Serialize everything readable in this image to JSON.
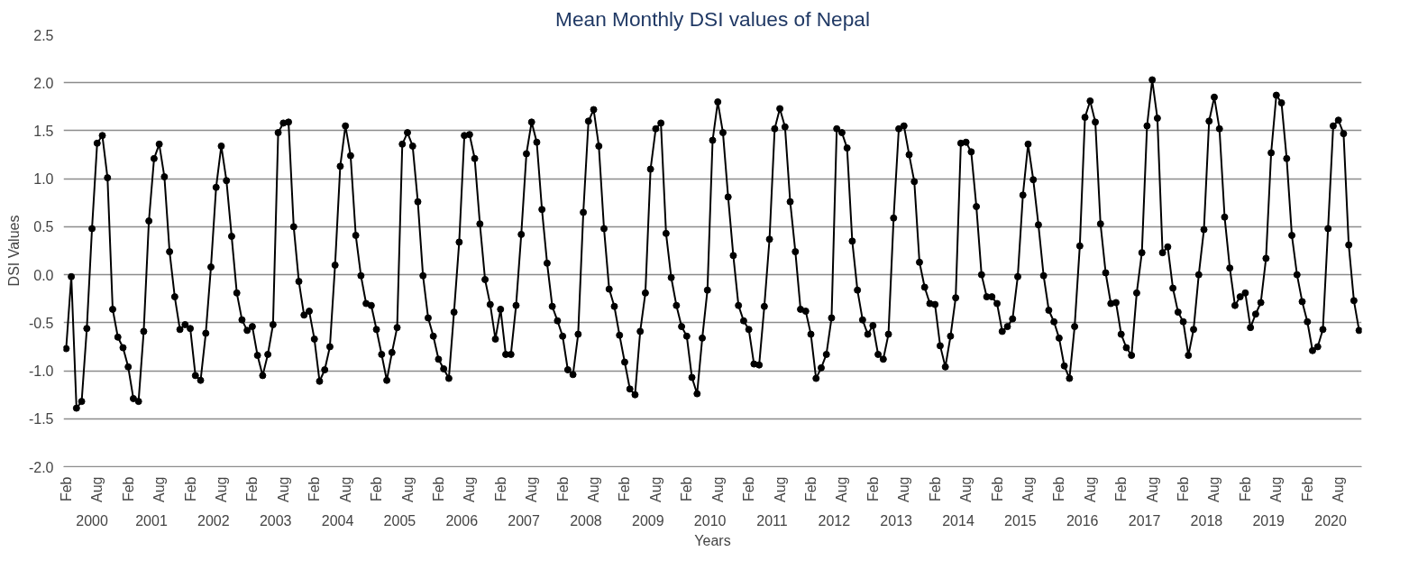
{
  "chart_data": {
    "type": "line",
    "title": "Mean Monthly DSI values of Nepal",
    "xlabel": "Years",
    "ylabel": "DSI Values",
    "categories": [
      "Feb",
      null,
      null,
      null,
      null,
      null,
      "Aug",
      null,
      null,
      null,
      null,
      null,
      "Feb",
      null,
      null,
      null,
      null,
      null,
      "Aug",
      null,
      null,
      null,
      null,
      null,
      "Feb",
      null,
      null,
      null,
      null,
      null,
      "Aug",
      null,
      null,
      null,
      null,
      null,
      "Feb",
      null,
      null,
      null,
      null,
      null,
      "Aug",
      null,
      null,
      null,
      null,
      null,
      "Feb",
      null,
      null,
      null,
      null,
      null,
      "Aug",
      null,
      null,
      null,
      null,
      null,
      "Feb",
      null,
      null,
      null,
      null,
      null,
      "Aug",
      null,
      null,
      null,
      null,
      null,
      "Feb",
      null,
      null,
      null,
      null,
      null,
      "Aug",
      null,
      null,
      null,
      null,
      null,
      "Feb",
      null,
      null,
      null,
      null,
      null,
      "Aug",
      null,
      null,
      null,
      null,
      null,
      "Feb",
      null,
      null,
      null,
      null,
      null,
      "Aug",
      null,
      null,
      null,
      null,
      null,
      "Feb",
      null,
      null,
      null,
      null,
      null,
      "Aug",
      null,
      null,
      null,
      null,
      null,
      "Feb",
      null,
      null,
      null,
      null,
      null,
      "Aug",
      null,
      null,
      null,
      null,
      null,
      "Feb",
      null,
      null,
      null,
      null,
      null,
      "Aug",
      null,
      null,
      null,
      null,
      null,
      "Feb",
      null,
      null,
      null,
      null,
      null,
      "Aug",
      null,
      null,
      null,
      null,
      null,
      "Feb",
      null,
      null,
      null,
      null,
      null,
      "Aug",
      null,
      null,
      null,
      null,
      null,
      "Feb",
      null,
      null,
      null,
      null,
      null,
      "Aug",
      null,
      null,
      null,
      null,
      null,
      "Feb",
      null,
      null,
      null,
      null,
      null,
      "Aug",
      null,
      null,
      null,
      null,
      null,
      "Feb",
      null,
      null,
      null,
      null,
      null,
      "Aug",
      null,
      null,
      null,
      null,
      null,
      "Feb",
      null,
      null,
      null,
      null,
      null,
      "Aug",
      null,
      null,
      null,
      null,
      null,
      "Feb",
      null,
      null,
      null,
      null,
      null,
      "Aug",
      null,
      null,
      null,
      null,
      null,
      "Feb",
      null,
      null,
      null,
      null,
      null,
      "Aug",
      null,
      null,
      null,
      null,
      null,
      "Feb",
      null,
      null,
      null,
      null,
      null,
      "Aug",
      null,
      null,
      null,
      null
    ],
    "series": [
      {
        "color": "#000000",
        "values": [
          -0.77,
          -0.02,
          -1.39,
          -1.32,
          -0.56,
          0.48,
          1.37,
          1.45,
          1.01,
          -0.36,
          -0.65,
          -0.76,
          -0.96,
          -1.29,
          -1.32,
          -0.59,
          0.56,
          1.21,
          1.36,
          1.02,
          0.24,
          -0.23,
          -0.57,
          -0.52,
          -0.56,
          -1.05,
          -1.1,
          -0.61,
          0.08,
          0.91,
          1.34,
          0.98,
          0.4,
          -0.19,
          -0.47,
          -0.58,
          -0.54,
          -0.84,
          -1.05,
          -0.83,
          -0.52,
          1.48,
          1.58,
          1.59,
          0.5,
          -0.07,
          -0.42,
          -0.38,
          -0.67,
          -1.11,
          -0.99,
          -0.75,
          0.1,
          1.13,
          1.55,
          1.24,
          0.41,
          -0.01,
          -0.3,
          -0.32,
          -0.57,
          -0.83,
          -1.1,
          -0.81,
          -0.55,
          1.36,
          1.48,
          1.34,
          0.76,
          -0.01,
          -0.45,
          -0.64,
          -0.88,
          -0.98,
          -1.08,
          -0.39,
          0.34,
          1.45,
          1.46,
          1.21,
          0.53,
          -0.05,
          -0.31,
          -0.67,
          -0.36,
          -0.83,
          -0.83,
          -0.32,
          0.42,
          1.26,
          1.59,
          1.38,
          0.68,
          0.12,
          -0.33,
          -0.48,
          -0.64,
          -0.99,
          -1.04,
          -0.62,
          0.65,
          1.6,
          1.72,
          1.34,
          0.48,
          -0.15,
          -0.33,
          -0.63,
          -0.91,
          -1.19,
          -1.25,
          -0.59,
          -0.19,
          1.1,
          1.52,
          1.58,
          0.43,
          -0.03,
          -0.32,
          -0.54,
          -0.64,
          -1.07,
          -1.24,
          -0.66,
          -0.16,
          1.4,
          1.8,
          1.48,
          0.81,
          0.2,
          -0.32,
          -0.48,
          -0.57,
          -0.93,
          -0.94,
          -0.33,
          0.37,
          1.52,
          1.73,
          1.54,
          0.76,
          0.24,
          -0.36,
          -0.38,
          -0.62,
          -1.08,
          -0.97,
          -0.83,
          -0.45,
          1.52,
          1.48,
          1.32,
          0.35,
          -0.16,
          -0.47,
          -0.62,
          -0.53,
          -0.83,
          -0.88,
          -0.62,
          0.59,
          1.52,
          1.55,
          1.25,
          0.97,
          0.13,
          -0.13,
          -0.3,
          -0.31,
          -0.74,
          -0.96,
          -0.64,
          -0.24,
          1.37,
          1.38,
          1.28,
          0.71,
          0.0,
          -0.23,
          -0.23,
          -0.3,
          -0.59,
          -0.54,
          -0.46,
          -0.02,
          0.83,
          1.36,
          0.99,
          0.52,
          -0.01,
          -0.37,
          -0.49,
          -0.66,
          -0.95,
          -1.08,
          -0.54,
          0.3,
          1.64,
          1.81,
          1.59,
          0.53,
          0.02,
          -0.3,
          -0.29,
          -0.62,
          -0.76,
          -0.84,
          -0.19,
          0.23,
          1.55,
          2.03,
          1.63,
          0.23,
          0.29,
          -0.14,
          -0.39,
          -0.49,
          -0.84,
          -0.57,
          0.0,
          0.47,
          1.6,
          1.85,
          1.52,
          0.6,
          0.07,
          -0.32,
          -0.23,
          -0.19,
          -0.55,
          -0.41,
          -0.29,
          0.17,
          1.27,
          1.87,
          1.79,
          1.21,
          0.41,
          0.0,
          -0.28,
          -0.49,
          -0.79,
          -0.75,
          -0.57,
          0.48,
          1.55,
          1.61,
          1.47,
          0.31,
          -0.27,
          -0.58
        ]
      }
    ],
    "annotations": [
      "2000",
      "2001",
      "2002",
      "2003",
      "2004",
      "2005",
      "2006",
      "2007",
      "2008",
      "2009",
      "2010",
      "2011",
      "2012",
      "2013",
      "2014",
      "2015",
      "2016",
      "2017",
      "2018",
      "2019",
      "2020"
    ],
    "ylim": [
      -2.0,
      2.5
    ],
    "yticks": [
      {
        "value": -2.0,
        "label": "-2.0"
      },
      {
        "value": -1.5,
        "label": "-1.5"
      },
      {
        "value": -1.0,
        "label": "-1.0"
      },
      {
        "value": -0.5,
        "label": "-0.5"
      },
      {
        "value": 0,
        "label": "0.0"
      },
      {
        "value": 0.5,
        "label": "0.5"
      },
      {
        "value": 1.0,
        "label": "1.0"
      },
      {
        "value": 1.5,
        "label": "1.5"
      },
      {
        "value": 2.0,
        "label": "2.0"
      },
      {
        "value": 2.5,
        "label": "2.5"
      }
    ],
    "grid": "y",
    "marker": "circle",
    "line_style": "solid"
  }
}
